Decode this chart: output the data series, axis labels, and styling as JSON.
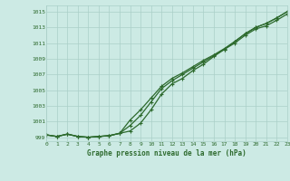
{
  "title": "Graphe pression niveau de la mer (hPa)",
  "xlabel_hours": [
    0,
    1,
    2,
    3,
    4,
    5,
    6,
    7,
    8,
    9,
    10,
    11,
    12,
    13,
    14,
    15,
    16,
    17,
    18,
    19,
    20,
    21,
    22,
    23
  ],
  "line1": [
    999.3,
    999.1,
    999.4,
    999.1,
    999.0,
    999.1,
    999.2,
    999.5,
    1000.5,
    1001.8,
    1003.5,
    1005.2,
    1006.2,
    1007.0,
    1007.8,
    1008.6,
    1009.4,
    1010.2,
    1011.2,
    1012.2,
    1013.0,
    1013.5,
    1014.2,
    1015.0
  ],
  "line2": [
    999.3,
    999.1,
    999.4,
    999.1,
    999.0,
    999.1,
    999.2,
    999.5,
    1001.2,
    1002.5,
    1004.0,
    1005.5,
    1006.5,
    1007.2,
    1008.0,
    1008.8,
    1009.5,
    1010.3,
    1011.2,
    1012.2,
    1013.0,
    1013.5,
    1014.2,
    1015.0
  ],
  "line3": [
    999.3,
    999.1,
    999.4,
    999.1,
    999.0,
    999.1,
    999.2,
    999.5,
    999.8,
    1000.8,
    1002.5,
    1004.5,
    1005.8,
    1006.5,
    1007.5,
    1008.3,
    1009.3,
    1010.2,
    1011.0,
    1012.0,
    1012.8,
    1013.2,
    1013.9,
    1014.7
  ],
  "line_color": "#2d6a2d",
  "marker": "+",
  "bg_color": "#cceae4",
  "grid_color": "#aacfc8",
  "text_color": "#2d6a2d",
  "ylim": [
    998.5,
    1015.8
  ],
  "yticks": [
    999,
    1001,
    1003,
    1005,
    1007,
    1009,
    1011,
    1013,
    1015
  ],
  "xlim": [
    0,
    23
  ],
  "figsize": [
    3.2,
    2.0
  ],
  "dpi": 100
}
